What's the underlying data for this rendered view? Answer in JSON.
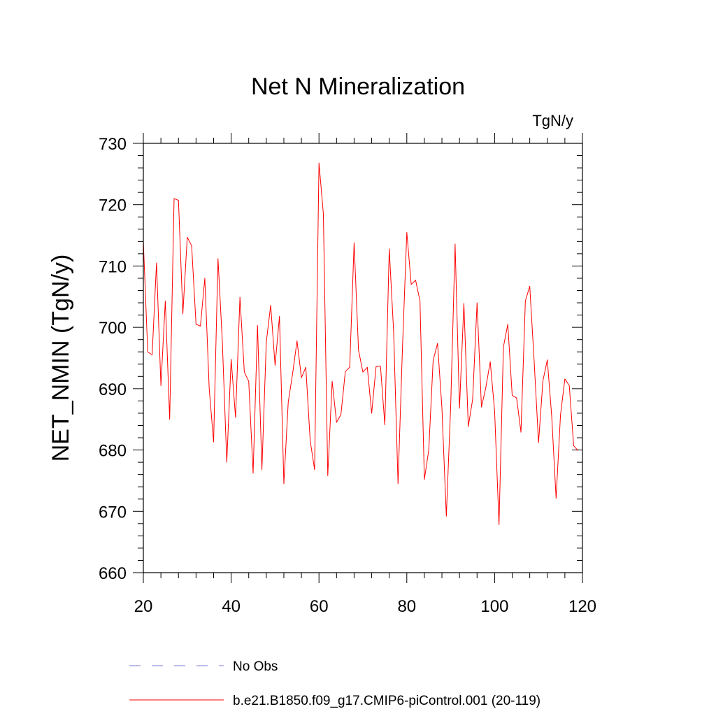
{
  "chart_data": {
    "type": "line",
    "title": "Net N Mineralization",
    "units_label": "TgN/y",
    "ylabel": "NET_NMIN  (TgN/y)",
    "xlabel": "",
    "xlim": [
      20,
      120
    ],
    "ylim": [
      660,
      730
    ],
    "xticks": [
      20,
      40,
      60,
      80,
      100,
      120
    ],
    "yticks": [
      660,
      670,
      680,
      690,
      700,
      710,
      720,
      730
    ],
    "x_start": 20,
    "series": [
      {
        "name": "b.e21.B1850.f09_g17.CMIP6-piControl.001 (20-119)",
        "color": "#ff0000",
        "style": "solid",
        "values": [
          714,
          696,
          695.5,
          710.5,
          690.5,
          704.3,
          685,
          721,
          720.7,
          702.2,
          714.7,
          713.3,
          700.5,
          700.2,
          708,
          690,
          681.3,
          711.2,
          697.5,
          678,
          694.8,
          685.3,
          704.9,
          692.7,
          691.2,
          676.2,
          700.3,
          676.8,
          697.6,
          703.6,
          693.8,
          701.8,
          674.5,
          687.8,
          692.5,
          697.8,
          691.8,
          693.5,
          681.5,
          676.8,
          726.8,
          718.5,
          675.8,
          691.2,
          684.5,
          685.8,
          692.8,
          693.5,
          713.8,
          696.3,
          692.7,
          693.5,
          686,
          693.6,
          693.7,
          684.1,
          712.8,
          699.3,
          674.5,
          696.4,
          715.5,
          707,
          707.7,
          704.3,
          675.2,
          680,
          694.6,
          697.4,
          686.8,
          669.2,
          687.3,
          713.6,
          686.8,
          703.9,
          683.8,
          688.3,
          704,
          687,
          690.2,
          694.4,
          686.3,
          667.8,
          696.8,
          700.5,
          688.9,
          688.5,
          682.9,
          704.3,
          706.7,
          694.5,
          681.2,
          691.3,
          694.7,
          685.5,
          672.1,
          685.7,
          691.6,
          690.5,
          680.7,
          679.9
        ]
      },
      {
        "name": "No Obs",
        "color": "#7b7bd6",
        "style": "dashed",
        "values": []
      }
    ]
  }
}
